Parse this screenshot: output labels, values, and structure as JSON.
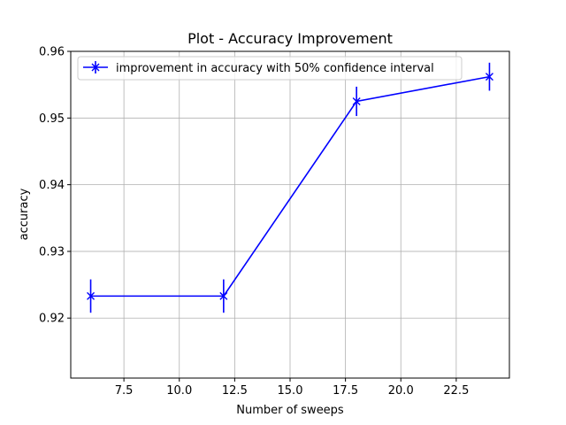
{
  "chart_data": {
    "type": "line",
    "title": "Plot - Accuracy Improvement",
    "xlabel": "Number of sweeps",
    "ylabel": "accuracy",
    "xlim": [
      5.1,
      24.9
    ],
    "ylim": [
      0.911,
      0.96
    ],
    "xticks": [
      7.5,
      10.0,
      12.5,
      15.0,
      17.5,
      20.0,
      22.5
    ],
    "xtick_labels": [
      "7.5",
      "10.0",
      "12.5",
      "15.0",
      "17.5",
      "20.0",
      "22.5"
    ],
    "yticks": [
      0.92,
      0.93,
      0.94,
      0.95,
      0.96
    ],
    "ytick_labels": [
      "0.92",
      "0.93",
      "0.94",
      "0.95",
      "0.96"
    ],
    "grid": true,
    "legend_position": "top-left",
    "series": [
      {
        "name": "improvement in accuracy with 50% confidence interval",
        "color": "#0000ff",
        "marker": "x",
        "x": [
          6,
          12,
          18,
          24
        ],
        "y": [
          0.9233,
          0.9233,
          0.9525,
          0.9562
        ],
        "yerr": [
          0.0025,
          0.0025,
          0.0022,
          0.0021
        ]
      }
    ]
  }
}
